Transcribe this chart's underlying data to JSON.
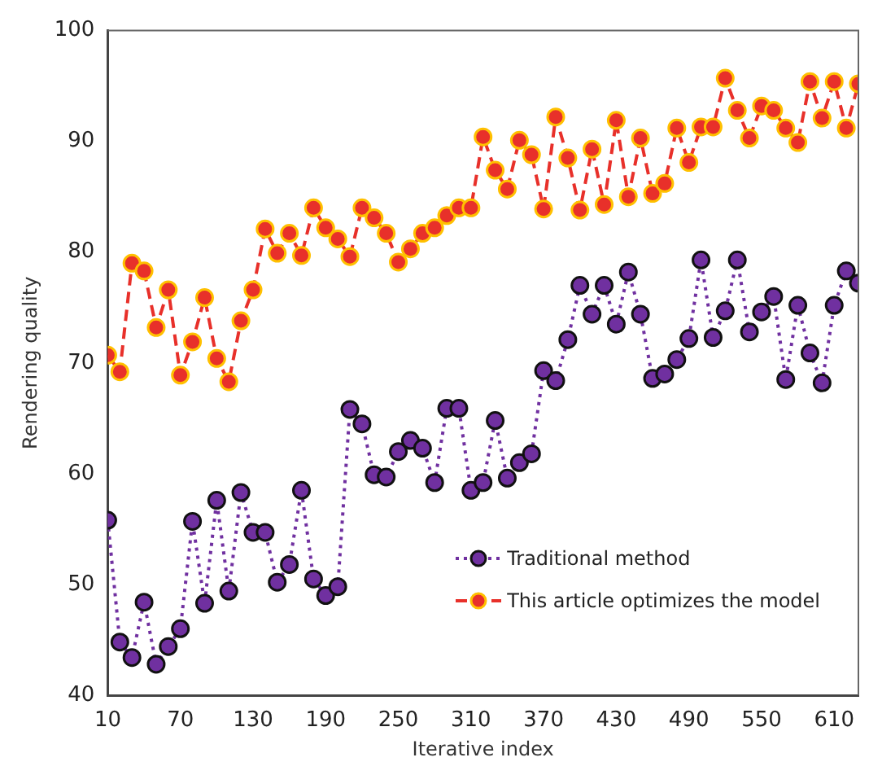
{
  "chart_data": {
    "type": "line",
    "xlabel": "Iterative index",
    "ylabel": "Rendering quality",
    "x": [
      10,
      20,
      30,
      40,
      50,
      60,
      70,
      80,
      90,
      100,
      110,
      120,
      130,
      140,
      150,
      160,
      170,
      180,
      190,
      200,
      210,
      220,
      230,
      240,
      250,
      260,
      270,
      280,
      290,
      300,
      310,
      320,
      330,
      340,
      350,
      360,
      370,
      380,
      390,
      400,
      410,
      420,
      430,
      440,
      450,
      460,
      470,
      480,
      490,
      500,
      510,
      520,
      530,
      540,
      550,
      560,
      570,
      580,
      590,
      600,
      610,
      620,
      630
    ],
    "series": [
      {
        "name": "Traditional method",
        "color": "#7030a0",
        "line_style": "dotted",
        "values": [
          55.8,
          44.8,
          43.4,
          48.4,
          42.8,
          44.4,
          46.0,
          55.7,
          48.3,
          57.6,
          49.4,
          58.3,
          54.7,
          54.7,
          50.2,
          51.8,
          58.5,
          50.5,
          49.0,
          49.8,
          65.8,
          64.5,
          59.9,
          59.7,
          62.0,
          63.0,
          62.3,
          59.2,
          65.9,
          65.9,
          58.5,
          59.2,
          64.8,
          59.6,
          61.0,
          61.8,
          69.3,
          68.4,
          72.1,
          77.0,
          74.4,
          77.0,
          73.5,
          78.2,
          74.4,
          68.6,
          69.0,
          70.3,
          72.2,
          79.3,
          72.3,
          74.7,
          79.3,
          72.8,
          74.6,
          76.0,
          68.5,
          75.2,
          70.9,
          68.2,
          75.2,
          78.3,
          77.2
        ]
      },
      {
        "name": "This article optimizes the model",
        "color": "#e8302a",
        "line_style": "dashed",
        "values": [
          70.7,
          69.2,
          79.0,
          78.3,
          73.2,
          76.6,
          68.9,
          71.9,
          75.9,
          70.4,
          68.3,
          73.8,
          76.6,
          82.1,
          79.9,
          81.7,
          79.7,
          84.0,
          82.2,
          81.2,
          79.6,
          84.0,
          83.1,
          81.7,
          79.1,
          80.3,
          81.7,
          82.2,
          83.3,
          84.0,
          84.0,
          90.4,
          87.4,
          85.7,
          90.1,
          88.8,
          83.9,
          92.2,
          88.5,
          83.8,
          89.3,
          84.3,
          91.9,
          85.0,
          90.3,
          85.3,
          86.2,
          91.2,
          88.1,
          91.3,
          91.3,
          95.7,
          92.8,
          90.3,
          93.2,
          92.8,
          91.2,
          89.9,
          95.4,
          92.1,
          95.4,
          91.2,
          95.2
        ]
      }
    ],
    "xlim": [
      10,
      630
    ],
    "xticks": [
      10,
      70,
      130,
      190,
      250,
      310,
      370,
      430,
      490,
      550,
      610
    ],
    "ylim": [
      40,
      100
    ],
    "yticks": [
      40,
      50,
      60,
      70,
      80,
      90,
      100
    ],
    "grid": false,
    "legend": "bottom right",
    "marker": "circle"
  }
}
